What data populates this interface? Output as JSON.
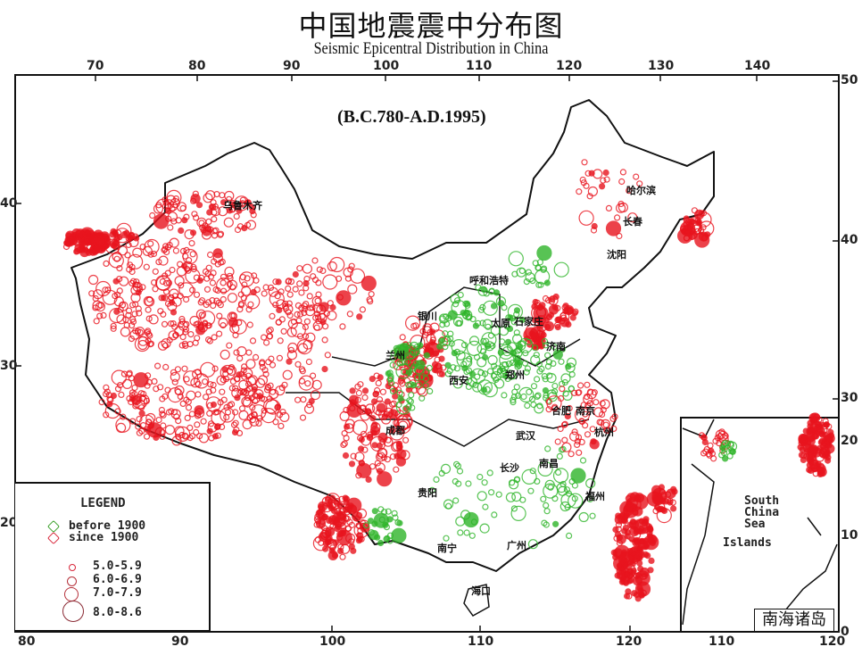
{
  "title_cn": "中国地震震中分布图",
  "title_en": "Seismic Epicentral Distribution in China",
  "period": "(B.C.780-A.D.1995)",
  "axes": {
    "top_lon": [
      "70",
      "80",
      "90",
      "100",
      "110",
      "120",
      "130",
      "140"
    ],
    "right_lat": [
      "50",
      "40",
      "30"
    ],
    "left_lat": [
      "40",
      "30",
      "20"
    ],
    "bottom_lon": [
      "80",
      "90",
      "100",
      "110",
      "120"
    ],
    "inset_lat": [
      "20",
      "10",
      "0"
    ],
    "inset_lon": [
      "110",
      "120"
    ]
  },
  "legend": {
    "title": "LEGEND",
    "era": [
      {
        "label": "before 1900",
        "color": "#3aa02a"
      },
      {
        "label": "since  1900",
        "color": "#d8263a"
      }
    ],
    "magnitudes": [
      "5.0-5.9",
      "6.0-6.9",
      "7.0-7.9",
      "8.0-8.6"
    ]
  },
  "cities": [
    "乌鲁木齐",
    "哈尔滨",
    "长春",
    "沈阳",
    "呼和浩特",
    "银川",
    "兰州",
    "太原",
    "石家庄",
    "济南",
    "郑州",
    "西安",
    "合肥",
    "南京",
    "武汉",
    "杭州",
    "长沙",
    "南昌",
    "福州",
    "贵阳",
    "南宁",
    "广州",
    "海口",
    "成都"
  ],
  "inset": {
    "label_lines": [
      "South",
      "China",
      "Sea",
      "Islands"
    ],
    "title_cn": "南海诸岛"
  },
  "colors": {
    "since_1900": "#e8141e",
    "before_1900": "#2fb52a",
    "border": "#111111"
  }
}
